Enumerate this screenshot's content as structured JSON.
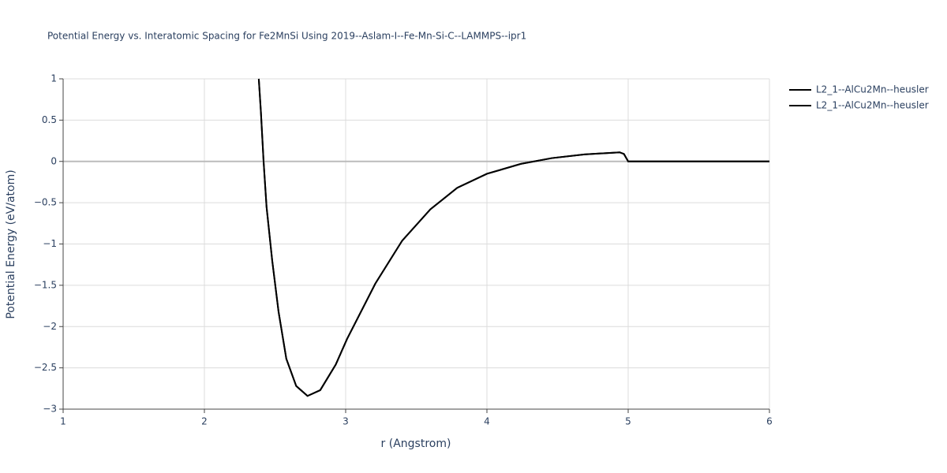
{
  "chart_data": {
    "type": "line",
    "title": "Potential Energy vs. Interatomic Spacing for Fe2MnSi Using 2019--Aslam-I--Fe-Mn-Si-C--LAMMPS--ipr1",
    "x_label": "r (Angstrom)",
    "y_label": "Potential Energy (eV/atom)",
    "xlim": [
      1,
      6
    ],
    "ylim": [
      -3,
      1
    ],
    "xticks": [
      1,
      2,
      3,
      4,
      5,
      6
    ],
    "yticks": [
      {
        "value": -3,
        "label": "−3"
      },
      {
        "value": -2.5,
        "label": "−2.5"
      },
      {
        "value": -2,
        "label": "−2"
      },
      {
        "value": -1.5,
        "label": "−1.5"
      },
      {
        "value": -1,
        "label": "−1"
      },
      {
        "value": -0.5,
        "label": "−0.5"
      },
      0,
      0.5,
      1
    ],
    "grid": true,
    "legend": "top-right",
    "series": [
      {
        "name": "L2_1--AlCu2Mn--heusler",
        "color": "#000000",
        "x": [
          2.385,
          2.4,
          2.419,
          2.44,
          2.48,
          2.525,
          2.58,
          2.65,
          2.73,
          2.82,
          2.93,
          3.01,
          3.21,
          3.4,
          3.6,
          3.79,
          4.0,
          4.24,
          4.46,
          4.69,
          4.94,
          4.97,
          5.0,
          6.0
        ],
        "values": [
          1,
          0.6,
          0,
          -0.55,
          -1.2,
          -1.82,
          -2.39,
          -2.72,
          -2.84,
          -2.77,
          -2.46,
          -2.15,
          -1.48,
          -0.96,
          -0.58,
          -0.32,
          -0.15,
          -0.03,
          0.04,
          0.085,
          0.11,
          0.09,
          0,
          0
        ]
      },
      {
        "name": "L2_1--AlCu2Mn--heusler",
        "color": "#000000",
        "x": [
          2.385,
          2.4,
          2.419,
          2.44,
          2.48,
          2.525,
          2.58,
          2.65,
          2.73,
          2.82,
          2.93,
          3.01,
          3.21,
          3.4,
          3.6,
          3.79,
          4.0,
          4.24,
          4.46,
          4.69,
          4.94,
          4.97,
          5.0,
          6.0
        ],
        "values": [
          1,
          0.6,
          0,
          -0.55,
          -1.2,
          -1.82,
          -2.39,
          -2.72,
          -2.84,
          -2.77,
          -2.46,
          -2.15,
          -1.48,
          -0.96,
          -0.58,
          -0.32,
          -0.15,
          -0.03,
          0.04,
          0.085,
          0.11,
          0.09,
          0,
          0
        ]
      }
    ]
  }
}
